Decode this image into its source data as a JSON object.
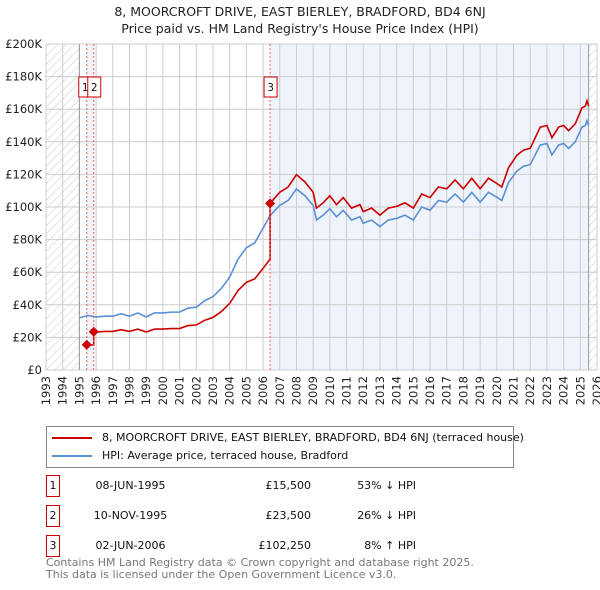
{
  "chart_data": {
    "type": "line",
    "title": "8, MOORCROFT DRIVE, EAST BIERLEY, BRADFORD, BD4 6NJ",
    "subtitle": "Price paid vs. HM Land Registry's House Price Index (HPI)",
    "xlim": [
      1993,
      2026
    ],
    "ylim": [
      0,
      200000
    ],
    "x_ticks": [
      "1993",
      "1994",
      "1995",
      "1996",
      "1997",
      "1998",
      "1999",
      "2000",
      "2001",
      "2002",
      "2003",
      "2004",
      "2005",
      "2006",
      "2007",
      "2008",
      "2009",
      "2010",
      "2011",
      "2012",
      "2013",
      "2014",
      "2015",
      "2016",
      "2017",
      "2018",
      "2019",
      "2020",
      "2021",
      "2022",
      "2023",
      "2024",
      "2025",
      "2026"
    ],
    "y_ticks": [
      {
        "v": 0,
        "l": "£0"
      },
      {
        "v": 20000,
        "l": "£20K"
      },
      {
        "v": 40000,
        "l": "£40K"
      },
      {
        "v": 60000,
        "l": "£60K"
      },
      {
        "v": 80000,
        "l": "£80K"
      },
      {
        "v": 100000,
        "l": "£100K"
      },
      {
        "v": 120000,
        "l": "£120K"
      },
      {
        "v": 140000,
        "l": "£140K"
      },
      {
        "v": 160000,
        "l": "£160K"
      },
      {
        "v": 180000,
        "l": "£180K"
      },
      {
        "v": 200000,
        "l": "£200K"
      }
    ],
    "grid": true,
    "data_range": [
      1995.0,
      2025.5
    ],
    "colors": {
      "property": "#cc0000",
      "hpi": "#5b8fd4",
      "shade": "#eef3fc",
      "hatch": "#bbbbbb",
      "grid": "#cccccc",
      "marker_line": "#ff5555"
    },
    "hpi": {
      "name": "HPI: Average price, terraced house, Bradford",
      "x": [
        1995.0,
        1995.5,
        1996,
        1996.5,
        1997,
        1997.5,
        1998,
        1998.5,
        1999,
        1999.5,
        2000,
        2000.5,
        2001,
        2001.5,
        2002,
        2002.5,
        2003,
        2003.5,
        2004,
        2004.5,
        2005,
        2005.5,
        2006,
        2006.4,
        2007,
        2007.5,
        2008,
        2008.5,
        2009,
        2009.2,
        2009.6,
        2010,
        2010.4,
        2010.8,
        2011.3,
        2011.8,
        2012,
        2012.5,
        2013,
        2013.5,
        2014,
        2014.5,
        2015,
        2015.5,
        2016,
        2016.5,
        2017,
        2017.5,
        2018,
        2018.5,
        2019,
        2019.5,
        2020,
        2020.3,
        2020.7,
        2021.2,
        2021.6,
        2022,
        2022.6,
        2023,
        2023.3,
        2023.7,
        2024,
        2024.3,
        2024.7,
        2025.1,
        2025.3,
        2025.4,
        2025.5
      ],
      "values": [
        32000,
        33500,
        32500,
        33000,
        33000,
        34500,
        33000,
        35000,
        32500,
        35000,
        35000,
        35500,
        35500,
        38000,
        38500,
        42500,
        45000,
        50000,
        57000,
        68000,
        75000,
        78000,
        87000,
        94500,
        101000,
        104000,
        111000,
        107000,
        101000,
        92000,
        95000,
        99000,
        94000,
        98000,
        92000,
        94000,
        90000,
        92000,
        88000,
        92000,
        93000,
        95000,
        92000,
        100000,
        98000,
        104000,
        103000,
        108000,
        103000,
        109000,
        103000,
        109000,
        106000,
        104000,
        115000,
        122000,
        125000,
        126000,
        138000,
        139000,
        132000,
        138000,
        139000,
        136000,
        140000,
        149000,
        150000,
        153000,
        150000
      ]
    },
    "property": {
      "name": "8, MOORCROFT DRIVE, EAST BIERLEY, BRADFORD, BD4 6NJ (terraced house)",
      "method": "sale price indexed by HPI"
    },
    "sales": [
      {
        "id": "1",
        "x": 1995.44,
        "date": "08-JUN-1995",
        "price": 15500,
        "price_label": "£15,500",
        "hpi_diff": "53% ↓ HPI"
      },
      {
        "id": "2",
        "x": 1995.86,
        "date": "10-NOV-1995",
        "price": 23500,
        "price_label": "£23,500",
        "hpi_diff": "26% ↓ HPI"
      },
      {
        "id": "3",
        "x": 2006.42,
        "date": "02-JUN-2006",
        "price": 102250,
        "price_label": "£102,250",
        "hpi_diff": "8% ↑ HPI"
      }
    ]
  },
  "title_line1": "8, MOORCROFT DRIVE, EAST BIERLEY, BRADFORD, BD4 6NJ",
  "title_line2": "Price paid vs. HM Land Registry's House Price Index (HPI)",
  "legend": {
    "property": "8, MOORCROFT DRIVE, EAST BIERLEY, BRADFORD, BD4 6NJ (terraced house)",
    "hpi": "HPI: Average price, terraced house, Bradford"
  },
  "footer": {
    "line1": "Contains HM Land Registry data © Crown copyright and database right 2025.",
    "line2": "This data is licensed under the Open Government Licence v3.0."
  }
}
